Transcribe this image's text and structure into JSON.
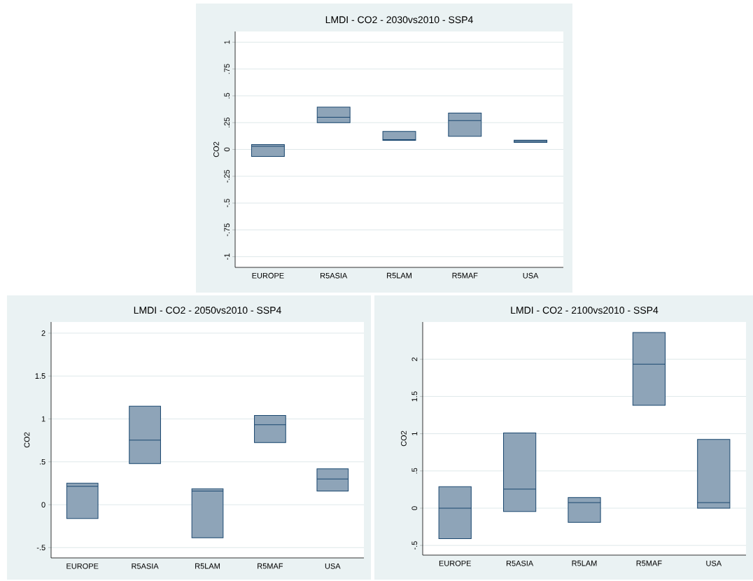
{
  "chart_data": [
    {
      "type": "box",
      "title": "LMDI - CO2 - 2030vs2010 - SSP4",
      "ylabel": "CO2",
      "categories": [
        "EUROPE",
        "R5ASIA",
        "R5LAM",
        "R5MAF",
        "USA"
      ],
      "color": "#8ea4b8",
      "grid": "y",
      "ylim": [
        -1.1,
        1.1
      ],
      "yticks": [
        {
          "value": -1,
          "label": "-1"
        },
        {
          "value": -0.75,
          "label": "-.75"
        },
        {
          "value": -0.5,
          "label": "-.5"
        },
        {
          "value": -0.25,
          "label": "-.25"
        },
        0,
        {
          "value": 0.25,
          "label": ".25"
        },
        {
          "value": 0.5,
          "label": ".5"
        },
        {
          "value": 0.75,
          "label": ".75"
        },
        1
      ],
      "boxes": [
        {
          "low": -0.065,
          "q1": -0.065,
          "median": 0.03,
          "q3": 0.045,
          "high": 0.045
        },
        {
          "low": 0.25,
          "q1": 0.25,
          "median": 0.3,
          "q3": 0.395,
          "high": 0.395
        },
        {
          "low": 0.085,
          "q1": 0.085,
          "median": 0.092,
          "q3": 0.168,
          "high": 0.168
        },
        {
          "low": 0.123,
          "q1": 0.123,
          "median": 0.269,
          "q3": 0.339,
          "high": 0.339
        },
        {
          "low": 0.065,
          "q1": 0.065,
          "median": 0.076,
          "q3": 0.087,
          "high": 0.087
        }
      ]
    },
    {
      "type": "box",
      "title": "LMDI - CO2 - 2050vs2010 - SSP4",
      "ylabel": "CO2",
      "categories": [
        "EUROPE",
        "R5ASIA",
        "R5LAM",
        "R5MAF",
        "USA"
      ],
      "color": "#8ea4b8",
      "grid": "y",
      "ylim": [
        -0.62,
        2.13
      ],
      "yticks": [
        {
          "value": -0.5,
          "label": "-.5"
        },
        0,
        {
          "value": 0.5,
          "label": ".5"
        },
        1,
        1.5,
        2
      ],
      "boxes": [
        {
          "low": -0.16,
          "q1": -0.16,
          "median": 0.214,
          "q3": 0.252,
          "high": 0.252
        },
        {
          "low": 0.48,
          "q1": 0.48,
          "median": 0.752,
          "q3": 1.148,
          "high": 1.148
        },
        {
          "low": -0.385,
          "q1": -0.385,
          "median": 0.16,
          "q3": 0.185,
          "high": 0.185
        },
        {
          "low": 0.725,
          "q1": 0.725,
          "median": 0.933,
          "q3": 1.04,
          "high": 1.04
        },
        {
          "low": 0.16,
          "q1": 0.16,
          "median": 0.3,
          "q3": 0.418,
          "high": 0.418
        }
      ]
    },
    {
      "type": "box",
      "title": "LMDI - CO2 - 2100vs2010 - SSP4",
      "ylabel": "CO2",
      "categories": [
        "EUROPE",
        "R5ASIA",
        "R5LAM",
        "R5MAF",
        "USA"
      ],
      "color": "#8ea4b8",
      "grid": "y",
      "ylim": [
        -0.63,
        2.5
      ],
      "yticks": [
        {
          "value": -0.5,
          "label": "-.5"
        },
        0,
        {
          "value": 0.5,
          "label": ".5"
        },
        1,
        1.5,
        2
      ],
      "boxes": [
        {
          "low": -0.408,
          "q1": -0.408,
          "median": 0.0,
          "q3": 0.289,
          "high": 0.289
        },
        {
          "low": -0.044,
          "q1": -0.044,
          "median": 0.257,
          "q3": 1.011,
          "high": 1.011
        },
        {
          "low": -0.19,
          "q1": -0.19,
          "median": 0.075,
          "q3": 0.144,
          "high": 0.144
        },
        {
          "low": 1.381,
          "q1": 1.381,
          "median": 1.934,
          "q3": 2.358,
          "high": 2.358
        },
        {
          "low": 0.0,
          "q1": 0.0,
          "median": 0.075,
          "q3": 0.923,
          "high": 0.923
        }
      ]
    }
  ]
}
